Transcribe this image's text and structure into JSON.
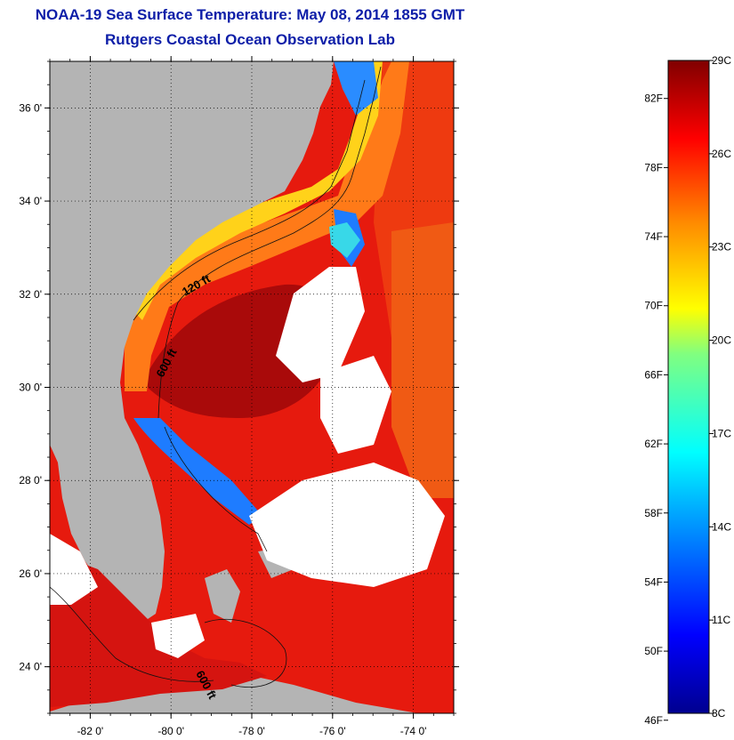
{
  "title": {
    "line1": "NOAA-19 Sea Surface Temperature:  May 08, 2014 1855 GMT",
    "line2": "Rutgers Coastal Ocean Observation Lab"
  },
  "map": {
    "lat_ticks": [
      {
        "lat": 36,
        "label": "36 0'"
      },
      {
        "lat": 34,
        "label": "34 0'"
      },
      {
        "lat": 32,
        "label": "32 0'"
      },
      {
        "lat": 30,
        "label": "30 0'"
      },
      {
        "lat": 28,
        "label": "28 0'"
      },
      {
        "lat": 26,
        "label": "26 0'"
      },
      {
        "lat": 24,
        "label": "24 0'"
      }
    ],
    "lon_ticks": [
      {
        "lon": -82,
        "label": "-82 0'"
      },
      {
        "lon": -80,
        "label": "-80 0'"
      },
      {
        "lon": -78,
        "label": "-78 0'"
      },
      {
        "lon": -76,
        "label": "-76 0'"
      },
      {
        "lon": -74,
        "label": "-74 0'"
      }
    ],
    "lon_range": [
      -83,
      -73
    ],
    "lat_range": [
      23,
      37
    ],
    "grid": "dotted",
    "contour_labels": [
      "120 ft",
      "600 ft",
      "600 ft"
    ],
    "colors": {
      "land": "#b4b4b4",
      "cloud": "#ffffff",
      "warm_water": "#e8150d",
      "gulf_stream": "#b30a0a",
      "shelf_water": "#ff7a1a",
      "nearshore": "#ffd21a",
      "cold_water": "#1a7cff"
    }
  },
  "colorbar": {
    "fahrenheit": [
      "82F",
      "78F",
      "74F",
      "70F",
      "66F",
      "62F",
      "58F",
      "54F",
      "50F",
      "46F"
    ],
    "celsius": [
      "29C",
      "26C",
      "23C",
      "20C",
      "17C",
      "14C",
      "11C",
      "8C"
    ],
    "range_c": [
      8,
      29
    ]
  }
}
